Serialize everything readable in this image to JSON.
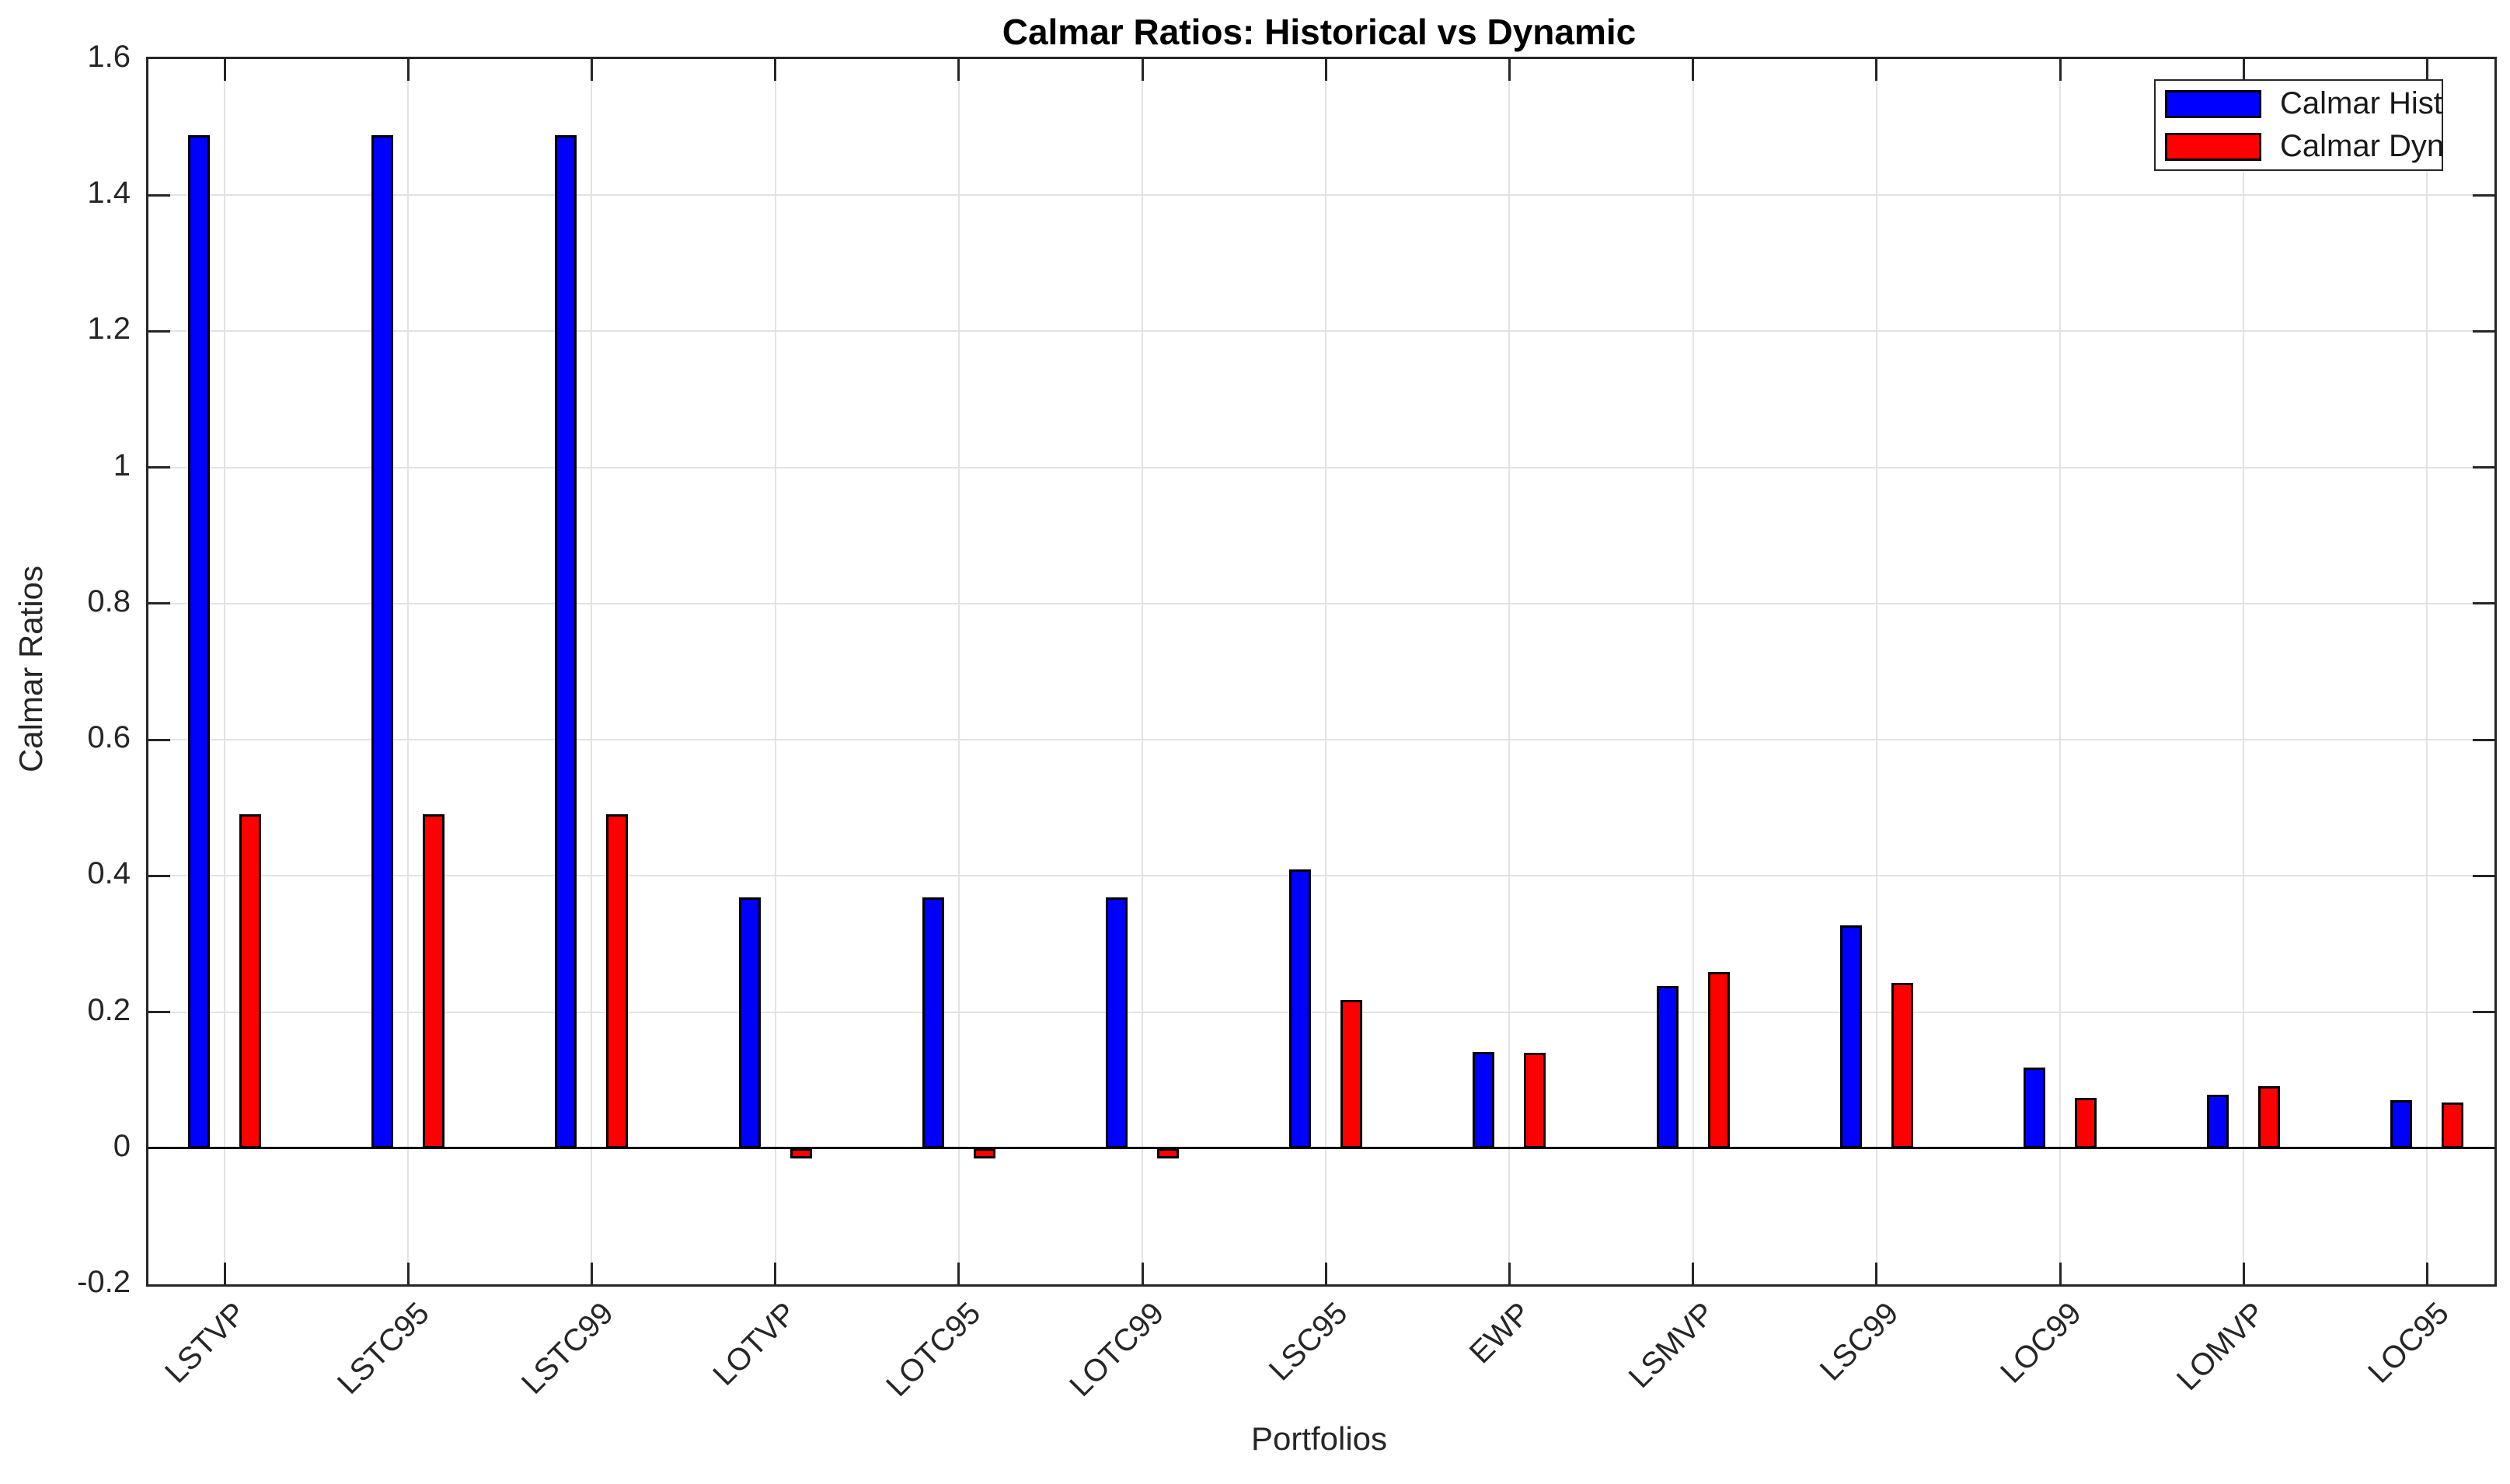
{
  "chart_data": {
    "type": "bar",
    "title": "Calmar Ratios: Historical vs Dynamic",
    "xlabel": "Portfolios",
    "ylabel": "Calmar Ratios",
    "categories": [
      "LSTVP",
      "LSTC95",
      "LSTC99",
      "LOTVP",
      "LOTC95",
      "LOTC99",
      "LSC95",
      "EWP",
      "LSMVP",
      "LSC99",
      "LOC99",
      "LOMVP",
      "LOC95"
    ],
    "series": [
      {
        "name": "Calmar Hist",
        "color": "#0000FF",
        "values": [
          1.488,
          1.488,
          1.488,
          0.368,
          0.368,
          0.368,
          0.41,
          0.141,
          0.238,
          0.327,
          0.118,
          0.079,
          0.071
        ]
      },
      {
        "name": "Calmar Dyn",
        "color": "#FF0000",
        "values": [
          0.49,
          0.49,
          0.49,
          -0.015,
          -0.015,
          -0.015,
          0.218,
          0.14,
          0.259,
          0.243,
          0.074,
          0.091,
          0.067
        ]
      }
    ],
    "ylim": [
      -0.2,
      1.6
    ],
    "yticks": {
      "values": [
        -0.2,
        0,
        0.2,
        0.4,
        0.6,
        0.8,
        1,
        1.2,
        1.4,
        1.6
      ],
      "labels": [
        "-0.2",
        "0",
        "0.2",
        "0.4",
        "0.6",
        "0.8",
        "1",
        "1.2",
        "1.4",
        "1.6"
      ]
    },
    "grid": true,
    "legend": {
      "position": "top-right",
      "entries": [
        {
          "label": "Calmar Hist",
          "color": "#0000FF"
        },
        {
          "label": "Calmar Dyn",
          "color": "#FF0000"
        }
      ]
    },
    "colors": {
      "axis": "#262626",
      "grid": "#E3E3E3",
      "baseline": "#000000",
      "bar_edge": "#000000",
      "background": "#FFFFFF"
    }
  }
}
